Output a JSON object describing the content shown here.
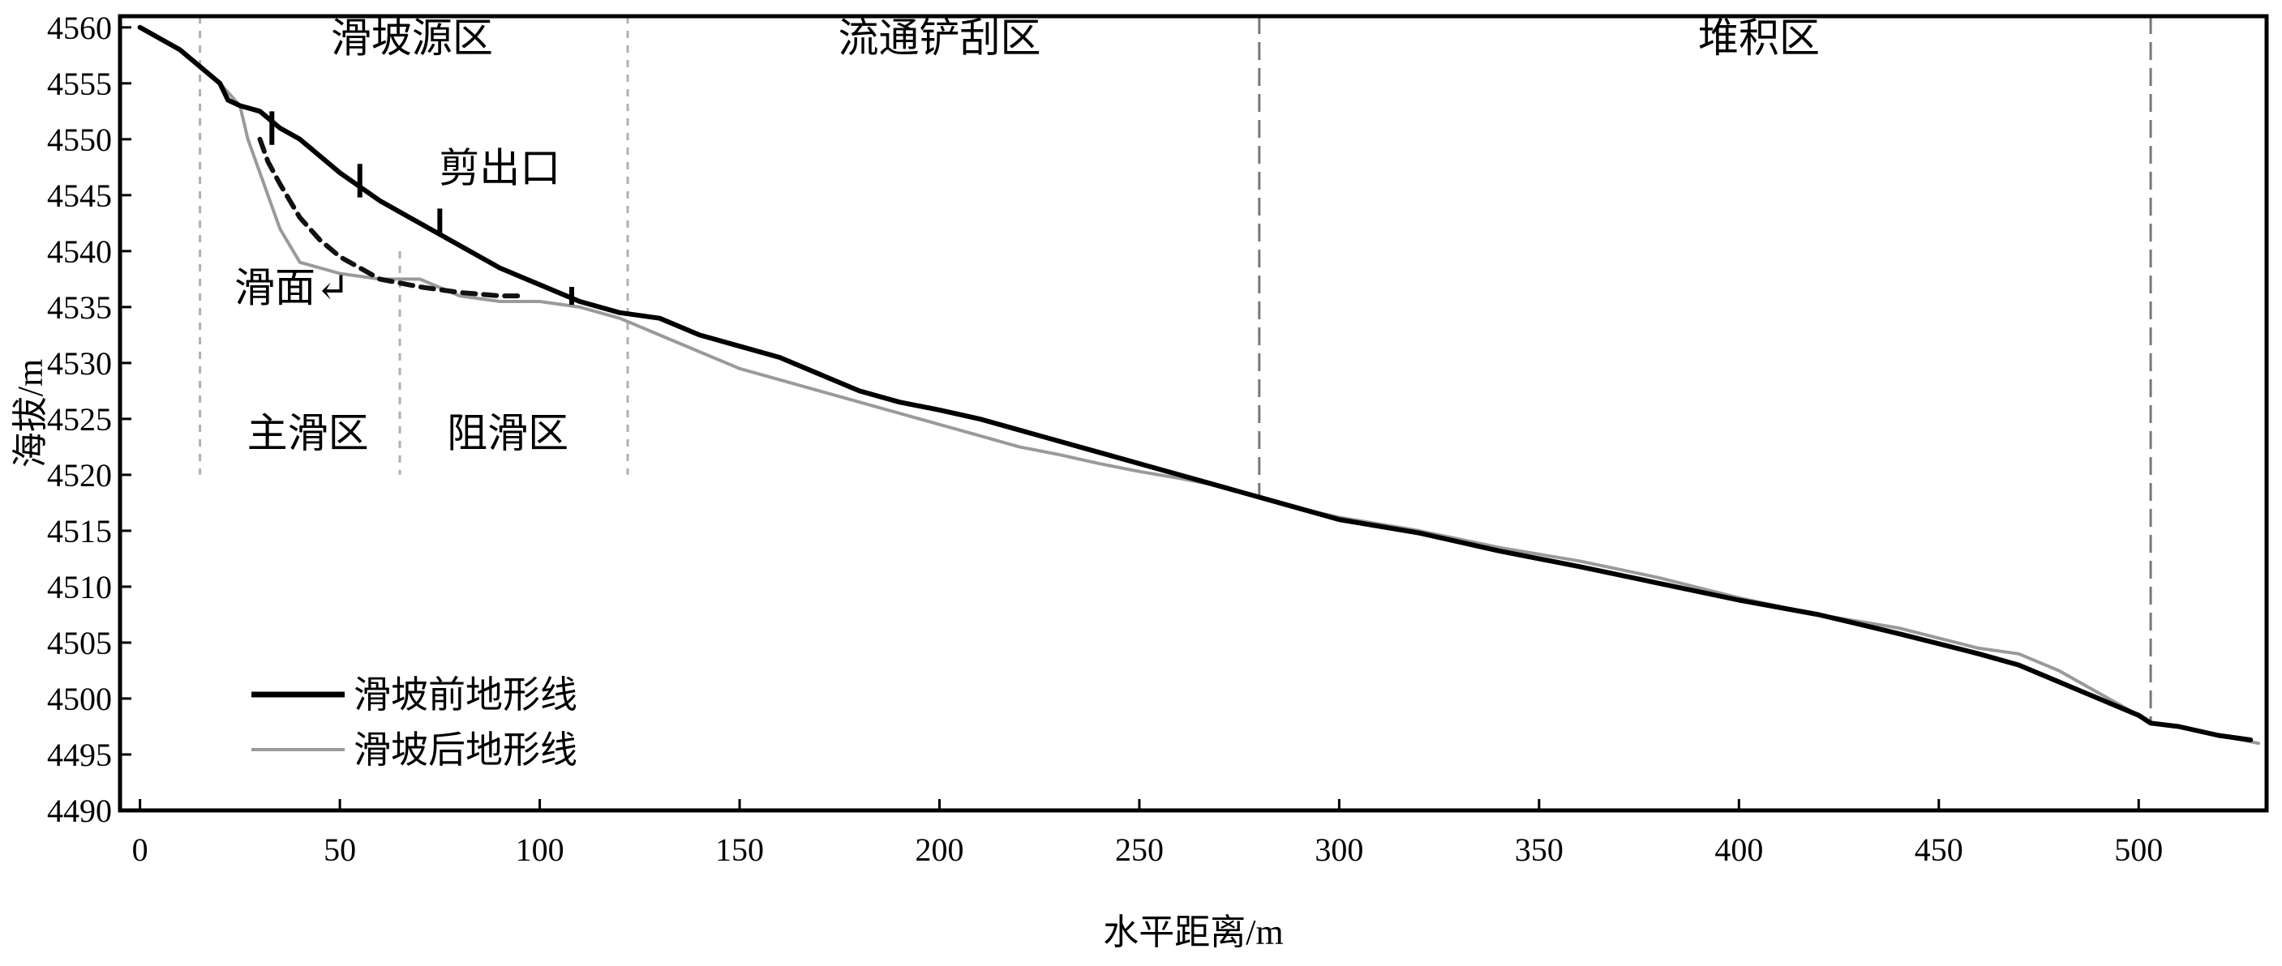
{
  "chart_data": {
    "type": "line",
    "title": "",
    "xlabel": "水平距离/m",
    "ylabel": "海拔/m",
    "xlim": [
      -5,
      532
    ],
    "ylim": [
      4490,
      4561
    ],
    "xticks": [
      0,
      50,
      100,
      150,
      200,
      250,
      300,
      350,
      400,
      450,
      500
    ],
    "yticks": [
      4490,
      4495,
      4500,
      4505,
      4510,
      4515,
      4520,
      4525,
      4530,
      4535,
      4540,
      4545,
      4550,
      4555,
      4560
    ],
    "grid": false,
    "legend_position": "bottom-left",
    "series": [
      {
        "name": "滑坡前地形线",
        "color": "#000000",
        "style": "solid",
        "x": [
          0,
          10,
          20,
          22,
          25,
          30,
          35,
          40,
          50,
          60,
          70,
          80,
          90,
          100,
          110,
          120,
          130,
          140,
          150,
          160,
          170,
          180,
          190,
          200,
          210,
          220,
          230,
          240,
          250,
          260,
          270,
          280,
          290,
          300,
          320,
          340,
          360,
          380,
          400,
          420,
          440,
          460,
          470,
          480,
          490,
          500,
          503,
          510,
          520,
          528
        ],
        "y": [
          4560,
          4558,
          4555,
          4553.5,
          4553,
          4552.5,
          4551,
          4550,
          4547,
          4544.5,
          4542.5,
          4540.5,
          4538.5,
          4537,
          4535.5,
          4534.5,
          4534,
          4532.5,
          4531.5,
          4530.5,
          4529,
          4527.5,
          4526.5,
          4525.8,
          4525,
          4524,
          4523,
          4522,
          4521,
          4520,
          4519,
          4518,
          4517,
          4516,
          4514.8,
          4513.2,
          4511.8,
          4510.3,
          4508.8,
          4507.5,
          4505.8,
          4504,
          4503,
          4501.5,
          4500,
          4498.5,
          4497.8,
          4497.5,
          4496.7,
          4496.3
        ]
      },
      {
        "name": "滑坡后地形线",
        "color": "#9a9a9a",
        "style": "solid",
        "x": [
          0,
          10,
          20,
          25,
          27,
          30,
          32,
          35,
          40,
          45,
          50,
          60,
          70,
          80,
          90,
          100,
          110,
          120,
          130,
          140,
          150,
          160,
          170,
          180,
          190,
          200,
          210,
          220,
          230,
          240,
          250,
          260,
          270,
          280,
          290,
          300,
          320,
          340,
          360,
          380,
          400,
          420,
          440,
          460,
          470,
          480,
          490,
          500,
          503,
          510,
          520,
          530
        ],
        "y": [
          4560,
          4558,
          4555,
          4553,
          4550,
          4547,
          4545,
          4542,
          4539,
          4538.5,
          4538,
          4537.5,
          4537.5,
          4536,
          4535.5,
          4535.5,
          4535,
          4534,
          4532.5,
          4531,
          4529.5,
          4528.5,
          4527.5,
          4526.5,
          4525.5,
          4524.5,
          4523.5,
          4522.5,
          4521.8,
          4521,
          4520.3,
          4519.7,
          4519,
          4518,
          4517,
          4516.2,
          4515,
          4513.5,
          4512.3,
          4510.8,
          4509,
          4507.5,
          4506.3,
          4504.5,
          4504,
          4502.5,
          4500.5,
          4498.5,
          4497.8,
          4497.5,
          4496.7,
          4496
        ]
      },
      {
        "name": "",
        "color": "#111111",
        "style": "dashed",
        "x": [
          30,
          32,
          35,
          40,
          45,
          50,
          55,
          60,
          70,
          80,
          90,
          95
        ],
        "y": [
          4550,
          4548,
          4546,
          4543,
          4541,
          4539.5,
          4538.5,
          4537.5,
          4536.8,
          4536.3,
          4536,
          4536
        ]
      }
    ],
    "zone_boundaries": [
      {
        "x": 15,
        "y_from": 4520,
        "y_to": 4561,
        "color": "#b0b0b0",
        "style": "short-dash"
      },
      {
        "x": 65,
        "y_from": 4520,
        "y_to": 4540,
        "color": "#b0b0b0",
        "style": "short-dash"
      },
      {
        "x": 122,
        "y_from": 4520,
        "y_to": 4561,
        "color": "#b0b0b0",
        "style": "short-dash"
      },
      {
        "x": 280,
        "y_from": 4518,
        "y_to": 4561,
        "color": "#777777",
        "style": "long-dash"
      },
      {
        "x": 503,
        "y_from": 4498,
        "y_to": 4561,
        "color": "#777777",
        "style": "long-dash"
      }
    ],
    "zone_labels": [
      {
        "text": "滑坡源区",
        "x": 68,
        "y": 4557.8
      },
      {
        "text": "流通铲刮区",
        "x": 200,
        "y": 4557.8
      },
      {
        "text": "堆积区",
        "x": 405,
        "y": 4557.8
      },
      {
        "text": "主滑区",
        "x": 42,
        "y": 4522.5
      },
      {
        "text": "阻滑区",
        "x": 92,
        "y": 4522.5
      }
    ],
    "annotations": [
      {
        "text": "剪出口",
        "x": 90,
        "y": 4546.2
      },
      {
        "text": "滑面↵",
        "x": 38,
        "y": 4535.5
      }
    ],
    "marks": [
      {
        "x": 33,
        "y_top": 4552.5,
        "y_bottom": 4549.5
      },
      {
        "x": 55,
        "y_top": 4547.8,
        "y_bottom": 4544.8
      },
      {
        "x": 75,
        "y_top": 4543.8,
        "y_bottom": 4541.5
      },
      {
        "x": 108,
        "y_top": 4536.8,
        "y_bottom": 4535.2
      }
    ]
  }
}
